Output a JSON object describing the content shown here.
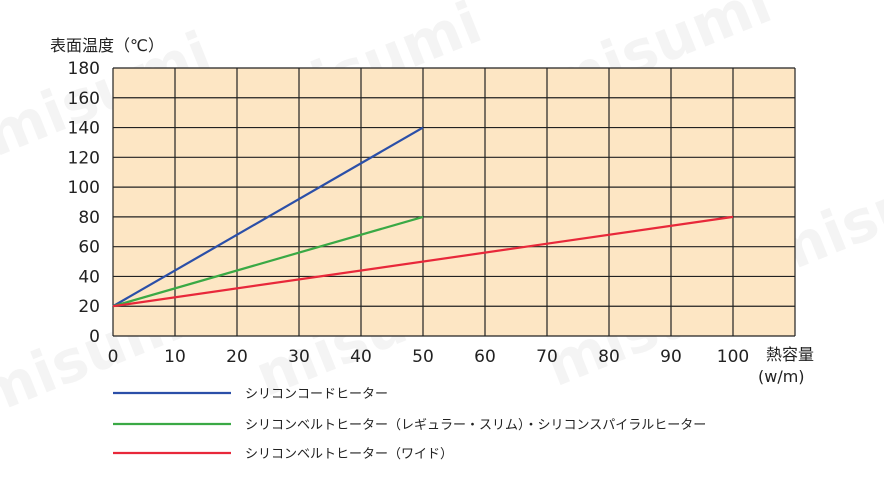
{
  "chart_data": {
    "type": "line",
    "title": "",
    "ylabel": "表面温度（℃）",
    "xlabel": "熱容量",
    "xunit": "(w/m)",
    "xlim": [
      0,
      110
    ],
    "ylim": [
      0,
      180
    ],
    "xticks": [
      0,
      10,
      20,
      30,
      40,
      50,
      60,
      70,
      80,
      90,
      100
    ],
    "yticks": [
      0,
      20,
      40,
      60,
      80,
      100,
      120,
      140,
      160,
      180
    ],
    "grid": true,
    "plot_bg": "#fde6c4",
    "grid_color": "#222222",
    "legend_position": "bottom",
    "series": [
      {
        "name": "シリコンコードヒーター",
        "color": "#2b4fa8",
        "x": [
          0,
          50
        ],
        "y": [
          20,
          140
        ]
      },
      {
        "name": "シリコンベルトヒーター（レギュラー・スリム）・シリコンスパイラルヒーター",
        "color": "#3aa945",
        "x": [
          0,
          50
        ],
        "y": [
          20,
          80
        ]
      },
      {
        "name": "シリコンベルトヒーター（ワイド）",
        "color": "#e8283a",
        "x": [
          0,
          100
        ],
        "y": [
          20,
          80
        ]
      }
    ]
  },
  "watermark": "misumi"
}
